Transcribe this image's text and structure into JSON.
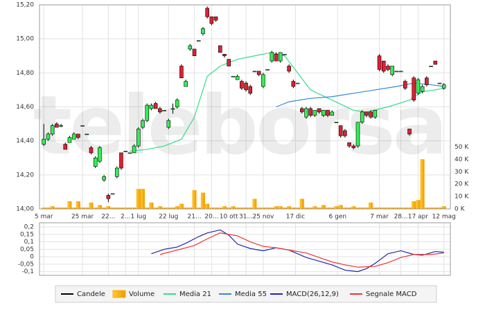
{
  "chart_data": [
    {
      "type": "candlestick",
      "watermark": "teleborsa",
      "xlim": [
        -1,
        94.5
      ],
      "xticks": [
        {
          "value": 0,
          "label": "5 mar"
        },
        {
          "value": 9,
          "label": "25 mar"
        },
        {
          "value": 15,
          "label": "22..."
        },
        {
          "value": 19,
          "label": "2..."
        },
        {
          "value": 22,
          "label": "1 lug"
        },
        {
          "value": 29,
          "label": "22 lug"
        },
        {
          "value": 35,
          "label": "21..."
        },
        {
          "value": 39,
          "label": "20..."
        },
        {
          "value": 43,
          "label": "10 ott"
        },
        {
          "value": 47,
          "label": "31..."
        },
        {
          "value": 51,
          "label": "25 nov"
        },
        {
          "value": 58.5,
          "label": "17 dic"
        },
        {
          "value": 68.3,
          "label": "6 gen"
        },
        {
          "value": 78,
          "label": "7 mar"
        },
        {
          "value": 83,
          "label": "28..."
        },
        {
          "value": 87,
          "label": "17 apr"
        },
        {
          "value": 93,
          "label": "12 mag"
        }
      ],
      "ylim": [
        14,
        15.2
      ],
      "yticks": [
        {
          "value": 14,
          "label": "14,00"
        },
        {
          "value": 14.2,
          "label": "14,20"
        },
        {
          "value": 14.4,
          "label": "14,40"
        },
        {
          "value": 14.6,
          "label": "14,60"
        },
        {
          "value": 14.8,
          "label": "14,80"
        },
        {
          "value": 15,
          "label": "15,00"
        },
        {
          "value": 15.2,
          "label": "15,20"
        }
      ],
      "y2lim": [
        0,
        165
      ],
      "y2ticks": [
        {
          "value": 0,
          "label": "0 K"
        },
        {
          "value": 10,
          "label": "10 K"
        },
        {
          "value": 20,
          "label": "20 K"
        },
        {
          "value": 30,
          "label": "30 K"
        },
        {
          "value": 40,
          "label": "40 K"
        },
        {
          "value": 50,
          "label": "50 K"
        }
      ],
      "grid": true,
      "series": [
        {
          "name": "Candele",
          "type": "candlestick",
          "color": "#000000",
          "up_color": "#33ee55",
          "down_color": "#dd2233",
          "open": [
            14.38,
            14.41,
            14.44,
            14.5,
            14.49,
            14.38,
            14.39,
            14.41,
            14.44,
            14.49,
            14.44,
            14.36,
            14.25,
            14.28,
            14.17,
            14.08,
            14.09,
            14.19,
            14.33,
            14.34,
            14.33,
            14.33,
            14.37,
            14.48,
            14.52,
            14.59,
            14.62,
            14.59,
            14.58,
            14.48,
            14.59,
            14.6,
            14.84,
            14.72,
            14.94,
            14.94,
            14.99,
            15.03,
            15.18,
            15.13,
            15.13,
            14.96,
            14.91,
            14.88,
            14.78,
            14.76,
            14.75,
            14.74,
            14.72,
            14.81,
            14.81,
            14.72,
            14.82,
            14.87,
            14.91,
            14.87,
            14.91,
            14.84,
            14.75,
            14.74,
            14.59,
            14.54,
            14.59,
            14.55,
            14.59,
            14.55,
            14.58,
            14.55,
            14.51,
            14.49,
            14.46,
            14.39,
            14.37,
            14.37,
            14.51,
            14.57,
            14.57,
            14.54,
            14.9,
            14.87,
            14.84,
            14.79,
            14.81,
            14.81,
            14.75,
            14.47,
            14.77,
            14.68,
            14.69,
            14.77,
            14.84,
            14.87,
            14.74,
            14.71
          ],
          "high": [
            14.5,
            14.45,
            14.5,
            14.51,
            14.5,
            14.39,
            14.43,
            14.45,
            14.44,
            14.49,
            14.44,
            14.37,
            14.31,
            14.37,
            14.2,
            14.09,
            14.09,
            14.25,
            14.33,
            14.34,
            14.33,
            14.38,
            14.48,
            14.53,
            14.62,
            14.62,
            14.63,
            14.6,
            14.58,
            14.53,
            14.62,
            14.65,
            14.85,
            14.76,
            14.97,
            14.94,
            14.99,
            15.07,
            15.19,
            15.13,
            15.13,
            14.96,
            14.91,
            14.88,
            14.78,
            14.79,
            14.76,
            14.75,
            14.73,
            14.81,
            14.81,
            14.8,
            14.82,
            14.93,
            14.92,
            14.92,
            14.91,
            14.85,
            14.76,
            14.74,
            14.6,
            14.6,
            14.6,
            14.58,
            14.59,
            14.58,
            14.58,
            14.58,
            14.51,
            14.49,
            14.47,
            14.39,
            14.38,
            14.51,
            14.58,
            14.57,
            14.58,
            14.58,
            14.91,
            14.87,
            14.85,
            14.84,
            14.81,
            14.81,
            14.76,
            14.47,
            14.78,
            14.77,
            14.73,
            14.78,
            14.84,
            14.87,
            14.74,
            14.74
          ],
          "low": [
            14.37,
            14.4,
            14.43,
            14.48,
            14.48,
            14.35,
            14.39,
            14.41,
            14.41,
            14.49,
            14.44,
            14.32,
            14.24,
            14.27,
            14.16,
            14.04,
            14.09,
            14.18,
            14.23,
            14.34,
            14.33,
            14.33,
            14.36,
            14.47,
            14.51,
            14.58,
            14.59,
            14.56,
            14.58,
            14.47,
            14.56,
            14.59,
            14.77,
            14.72,
            14.93,
            14.9,
            14.99,
            15.02,
            15.12,
            15.08,
            15.1,
            14.92,
            14.89,
            14.84,
            14.78,
            14.76,
            14.7,
            14.69,
            14.67,
            14.81,
            14.78,
            14.71,
            14.82,
            14.86,
            14.87,
            14.86,
            14.91,
            14.8,
            14.71,
            14.74,
            14.56,
            14.53,
            14.54,
            14.54,
            14.56,
            14.54,
            14.54,
            14.55,
            14.51,
            14.42,
            14.42,
            14.36,
            14.35,
            14.36,
            14.5,
            14.54,
            14.53,
            14.53,
            14.81,
            14.8,
            14.81,
            14.78,
            14.81,
            14.81,
            14.7,
            14.43,
            14.63,
            14.67,
            14.68,
            14.72,
            14.84,
            14.85,
            14.74,
            14.7
          ],
          "close": [
            14.41,
            14.44,
            14.49,
            14.48,
            14.49,
            14.35,
            14.42,
            14.44,
            14.42,
            14.49,
            14.44,
            14.33,
            14.3,
            14.36,
            14.19,
            14.06,
            14.09,
            14.24,
            14.24,
            14.34,
            14.33,
            14.37,
            14.47,
            14.52,
            14.61,
            14.61,
            14.59,
            14.57,
            14.58,
            14.52,
            14.59,
            14.64,
            14.77,
            14.75,
            14.96,
            14.9,
            14.99,
            15.06,
            15.13,
            15.09,
            15.11,
            14.92,
            14.9,
            14.84,
            14.78,
            14.78,
            14.71,
            14.7,
            14.68,
            14.81,
            14.79,
            14.79,
            14.82,
            14.92,
            14.87,
            14.92,
            14.91,
            14.81,
            14.72,
            14.74,
            14.57,
            14.59,
            14.55,
            14.58,
            14.57,
            14.58,
            14.55,
            14.57,
            14.51,
            14.43,
            14.43,
            14.37,
            14.36,
            14.51,
            14.57,
            14.55,
            14.54,
            14.58,
            14.82,
            14.81,
            14.82,
            14.84,
            14.81,
            14.81,
            14.71,
            14.44,
            14.64,
            14.76,
            14.72,
            14.73,
            14.84,
            14.85,
            14.74,
            14.73
          ]
        },
        {
          "name": "Volume",
          "type": "bar",
          "axis": "y2",
          "color": "#ffaa00",
          "values": [
            1,
            1,
            2,
            1,
            1,
            1,
            6,
            1,
            6,
            1,
            1,
            5,
            1,
            3,
            1,
            2,
            1,
            1,
            1,
            1,
            1,
            1,
            16,
            16,
            1,
            5,
            1,
            2,
            1,
            1,
            1,
            2,
            4,
            1,
            1,
            15,
            1,
            13,
            4,
            1,
            1,
            1,
            2,
            1,
            2,
            1,
            1,
            1,
            1,
            8,
            1,
            1,
            1,
            1,
            2,
            2,
            1,
            2,
            1,
            1,
            8,
            1,
            1,
            2,
            1,
            3,
            1,
            1,
            2,
            3,
            1,
            1,
            2,
            1,
            1,
            1,
            5,
            1,
            1,
            1,
            1,
            1,
            1,
            1,
            1,
            1,
            6,
            7,
            40,
            1,
            1,
            1,
            1,
            2
          ]
        },
        {
          "name": "Media 21",
          "type": "line",
          "color": "#33dd88",
          "x": [
            20,
            24,
            28,
            32,
            35,
            38,
            41,
            45,
            49,
            53,
            56,
            59,
            62,
            67,
            72,
            75,
            80,
            85,
            88,
            91,
            93
          ],
          "values": [
            14.34,
            14.35,
            14.37,
            14.41,
            14.54,
            14.78,
            14.84,
            14.88,
            14.9,
            14.92,
            14.9,
            14.8,
            14.7,
            14.64,
            14.58,
            14.57,
            14.6,
            14.64,
            14.69,
            14.7,
            14.71
          ]
        },
        {
          "name": "Media 55",
          "type": "line",
          "color": "#3388dd",
          "x": [
            54,
            57,
            62,
            67,
            72,
            77,
            82,
            86,
            90,
            93
          ],
          "values": [
            14.6,
            14.63,
            14.65,
            14.66,
            14.68,
            14.7,
            14.72,
            14.74,
            14.73,
            14.72
          ]
        }
      ]
    },
    {
      "type": "line",
      "xlim": [
        -1,
        94.5
      ],
      "ylim": [
        -0.125,
        0.228
      ],
      "yticks": [
        {
          "value": 0.2,
          "label": "0,2"
        },
        {
          "value": 0.15,
          "label": "0,15"
        },
        {
          "value": 0.1,
          "label": "0,1"
        },
        {
          "value": 0.05,
          "label": "0,05"
        },
        0,
        {
          "value": -0.05,
          "label": "-0,05"
        },
        {
          "value": -0.1,
          "label": "-0,1"
        }
      ],
      "grid": true,
      "series": [
        {
          "name": "MACD(26,12,9)",
          "color": "#2222aa",
          "x": [
            25,
            28,
            31,
            33,
            36,
            38,
            41,
            43,
            45,
            48,
            51,
            54,
            57,
            61,
            64,
            67,
            70,
            73,
            75,
            77,
            80,
            83,
            86,
            88,
            91,
            93
          ],
          "values": [
            0.02,
            0.05,
            0.065,
            0.09,
            0.135,
            0.16,
            0.18,
            0.145,
            0.085,
            0.055,
            0.04,
            0.06,
            0.045,
            -0.005,
            -0.03,
            -0.055,
            -0.09,
            -0.1,
            -0.08,
            -0.045,
            0.02,
            0.04,
            0.015,
            0.01,
            0.035,
            0.03
          ]
        },
        {
          "name": "Segnale MACD",
          "color": "#ee3333",
          "x": [
            27,
            35,
            38,
            41,
            45,
            48,
            51,
            54,
            57,
            61,
            64,
            67,
            70,
            73,
            77,
            80,
            83,
            86,
            90,
            93
          ],
          "values": [
            0.015,
            0.075,
            0.12,
            0.16,
            0.14,
            0.1,
            0.07,
            0.06,
            0.045,
            0.025,
            -0.005,
            -0.035,
            -0.055,
            -0.07,
            -0.065,
            -0.04,
            -0.005,
            0.015,
            0.015,
            0.025
          ]
        }
      ]
    }
  ]
}
